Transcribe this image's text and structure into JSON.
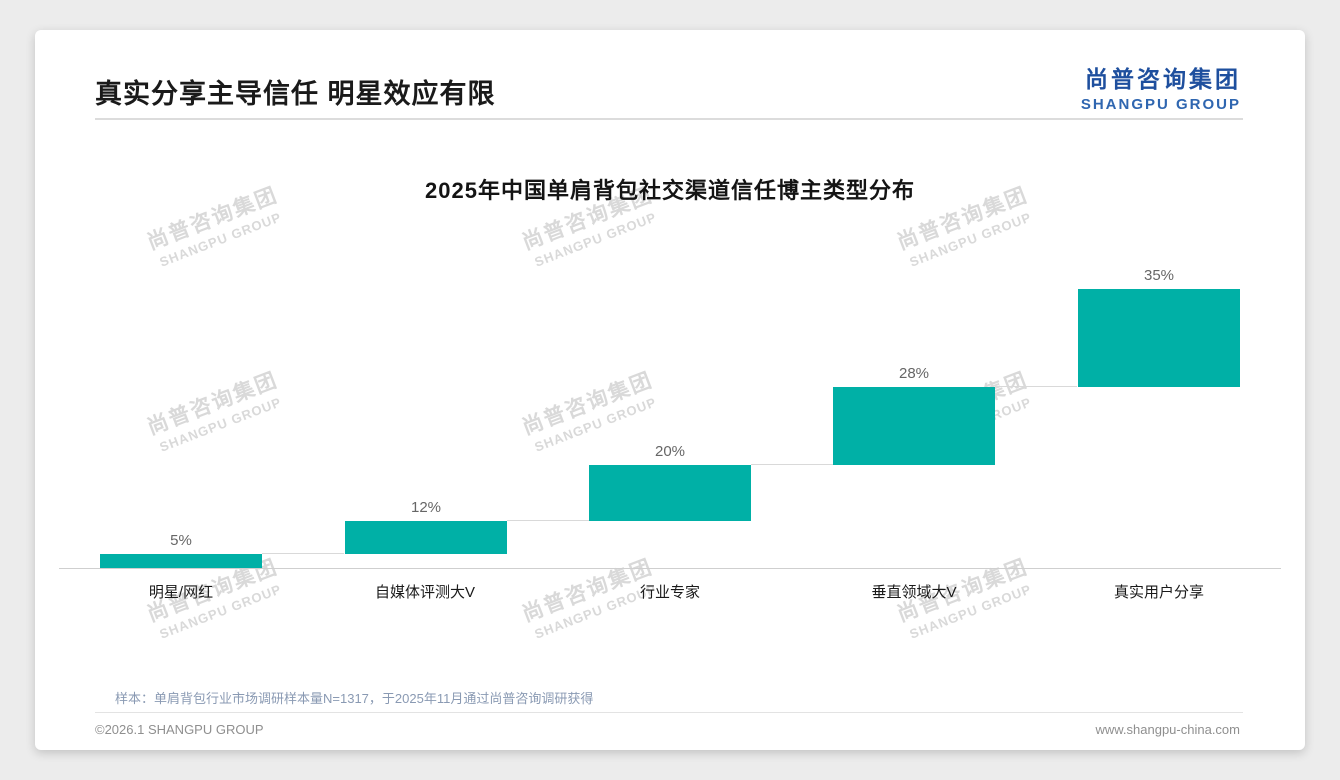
{
  "slide": {
    "title": "真实分享主导信任 明星效应有限",
    "sample_note": "样本：单肩背包行业市场调研样本量N=1317，于2025年11月通过尚普咨询调研获得",
    "footer_left": "©2026.1 SHANGPU GROUP",
    "footer_right": "www.shangpu-china.com"
  },
  "logo": {
    "cn": "尚普咨询集团",
    "en": "SHANGPU GROUP",
    "color": "#1e4f9e"
  },
  "watermark": {
    "cn": "尚普咨询集团",
    "en": "SHANGPU GROUP"
  },
  "chart_data": {
    "type": "bar",
    "subtype": "waterfall-steps",
    "title": "2025年中国单肩背包社交渠道信任博主类型分布",
    "categories": [
      "明星/网红",
      "自媒体评测大V",
      "行业专家",
      "垂直领域大V",
      "真实用户分享"
    ],
    "values": [
      5,
      12,
      20,
      28,
      35
    ],
    "labels": [
      "5%",
      "12%",
      "20%",
      "28%",
      "35%"
    ],
    "bar_color": "#00b0a6",
    "ylim": [
      0,
      100
    ],
    "grid": false,
    "legend": "none",
    "baseline_color": "#cfcfcf"
  }
}
